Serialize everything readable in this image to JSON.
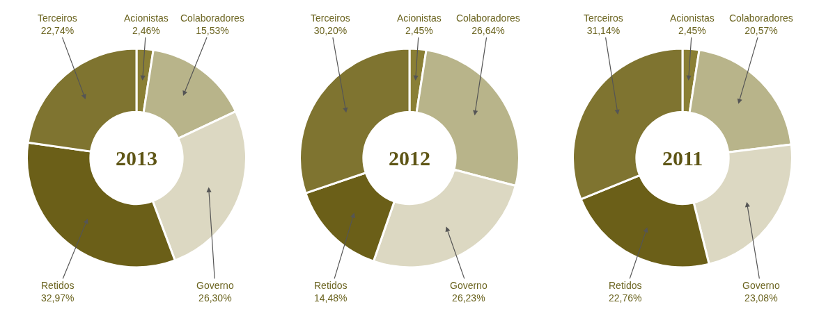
{
  "chart_data": [
    {
      "type": "donut",
      "title": "2013",
      "categories": [
        "Acionistas",
        "Colaboradores",
        "Governo",
        "Retidos",
        "Terceiros"
      ],
      "values": [
        2.46,
        15.53,
        26.3,
        32.97,
        22.74
      ],
      "value_labels": [
        "2,46%",
        "15,53%",
        "26,30%",
        "32,97%",
        "22,74%"
      ],
      "colors": [
        "#8a7f35",
        "#b8b48a",
        "#dcd8c2",
        "#6b5f18",
        "#7f7430"
      ]
    },
    {
      "type": "donut",
      "title": "2012",
      "categories": [
        "Acionistas",
        "Colaboradores",
        "Governo",
        "Retidos",
        "Terceiros"
      ],
      "values": [
        2.45,
        26.64,
        26.23,
        14.48,
        30.2
      ],
      "value_labels": [
        "2,45%",
        "26,64%",
        "26,23%",
        "14,48%",
        "30,20%"
      ],
      "colors": [
        "#8a7f35",
        "#b8b48a",
        "#dcd8c2",
        "#6b5f18",
        "#7f7430"
      ]
    },
    {
      "type": "donut",
      "title": "2011",
      "categories": [
        "Acionistas",
        "Colaboradores",
        "Governo",
        "Retidos",
        "Terceiros"
      ],
      "values": [
        2.45,
        20.57,
        23.08,
        22.76,
        31.14
      ],
      "value_labels": [
        "2,45%",
        "20,57%",
        "23,08%",
        "22,76%",
        "31,14%"
      ],
      "colors": [
        "#8a7f35",
        "#b8b48a",
        "#dcd8c2",
        "#6b5f18",
        "#7f7430"
      ]
    }
  ]
}
